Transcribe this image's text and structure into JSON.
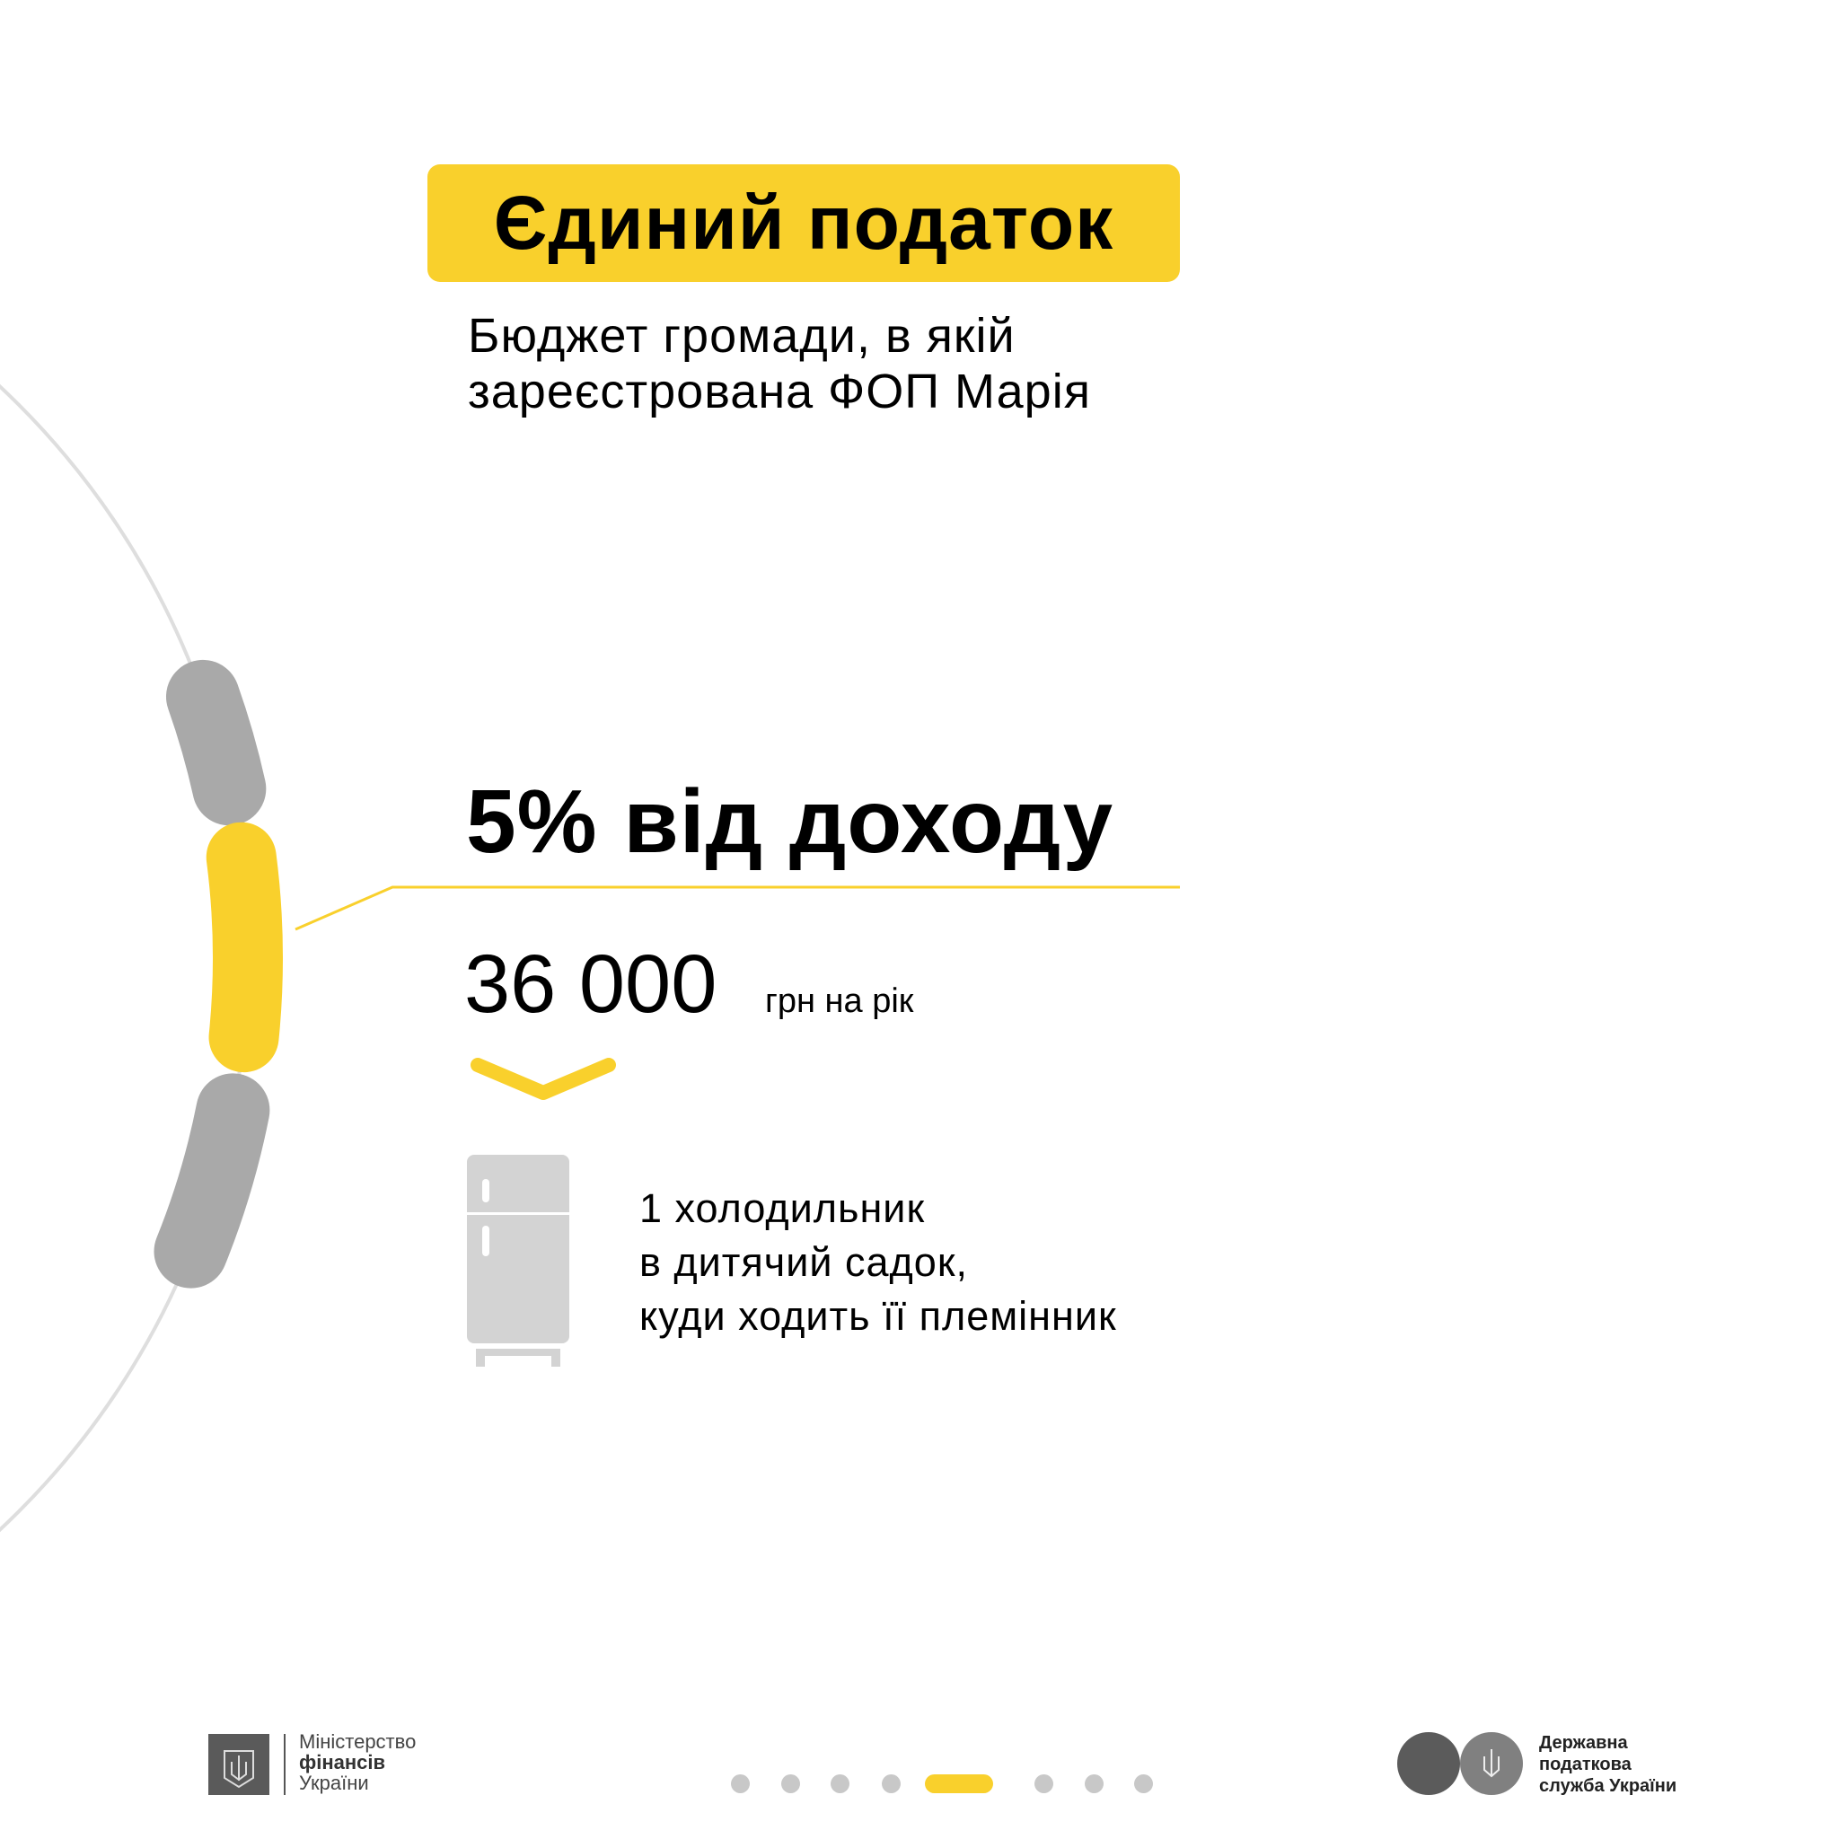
{
  "header": {
    "title": "Єдиний податок",
    "subtitle_line1": "Бюджет громади, в якій",
    "subtitle_line2": "зареєстрована ФОП Марія"
  },
  "main": {
    "headline": "5% від доходу",
    "amount": "36 000",
    "amount_unit": "грн на рік",
    "description_line1": "1 холодильник",
    "description_line2": "в дитячий садок,",
    "description_line3": "куди ходить її племінник",
    "icon": "fridge-icon"
  },
  "footer": {
    "left_logo": {
      "line1": "Міністерство",
      "line2": "фінансів",
      "line3": "України"
    },
    "right_logo": {
      "line1": "Державна",
      "line2": "податкова",
      "line3": "служба України"
    },
    "pagination": {
      "total": 8,
      "active": 5
    }
  },
  "colors": {
    "accent": "#f9d02c",
    "segment_gray": "#a9a9a9",
    "arc_gray": "#dedede",
    "icon_gray": "#d3d3d3"
  }
}
